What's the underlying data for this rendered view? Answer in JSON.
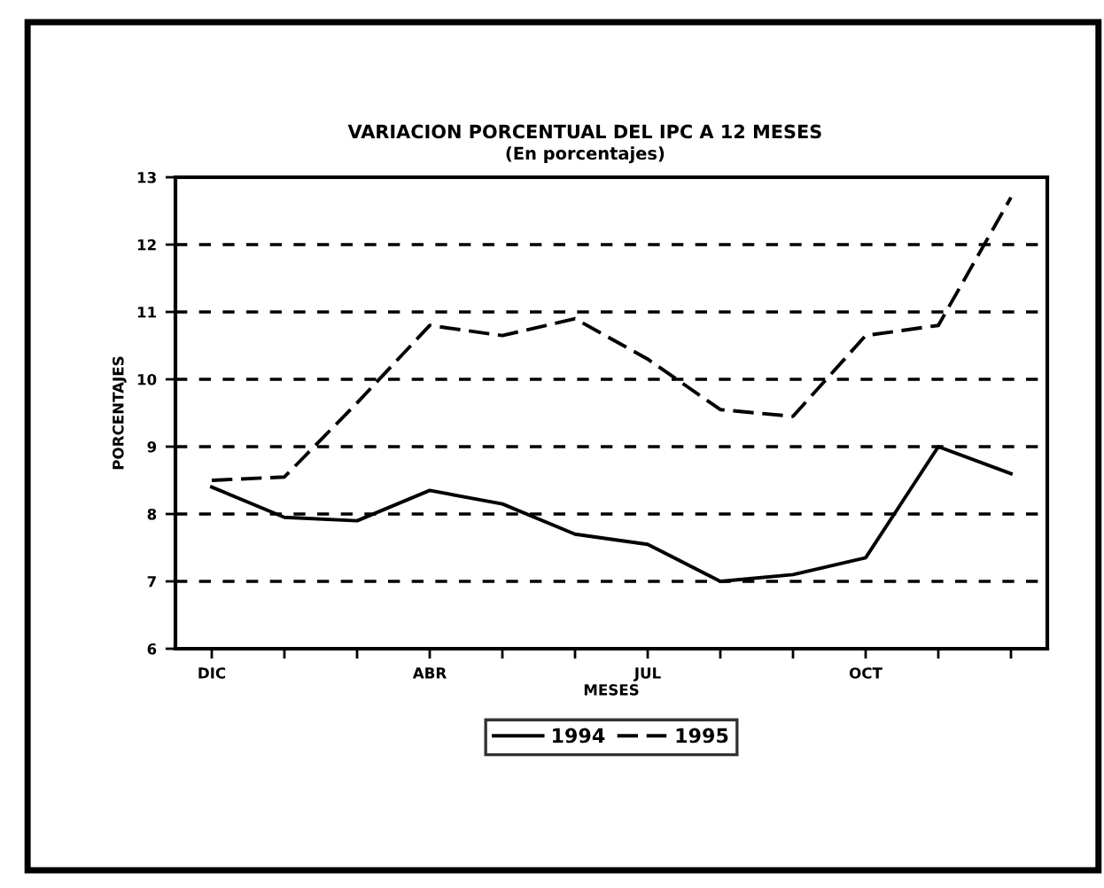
{
  "chart_data": {
    "type": "line",
    "title": "VARIACION PORCENTUAL DEL IPC A 12 MESES",
    "subtitle": "(En porcentajes)",
    "xlabel": "MESES",
    "ylabel": "PORCENTAJES",
    "categories": [
      "DIC",
      null,
      null,
      "ABR",
      null,
      null,
      "JUL",
      null,
      null,
      "OCT",
      null,
      null
    ],
    "series": [
      {
        "name": "1994",
        "color": "#000000",
        "line_style": "solid",
        "values": [
          8.4,
          7.95,
          7.9,
          8.35,
          8.15,
          7.7,
          7.55,
          7.0,
          7.1,
          7.35,
          9.0,
          8.6
        ]
      },
      {
        "name": "1995",
        "color": "#000000",
        "line_style": "dashed",
        "values": [
          8.5,
          8.55,
          9.65,
          10.8,
          10.65,
          10.9,
          10.3,
          9.55,
          9.45,
          10.65,
          10.8,
          12.7
        ]
      }
    ],
    "ylim": [
      6,
      13
    ],
    "yticks": [
      6,
      7,
      8,
      9,
      10,
      11,
      12,
      13
    ],
    "grid": "y",
    "legend": "bottom",
    "marker": "none"
  }
}
